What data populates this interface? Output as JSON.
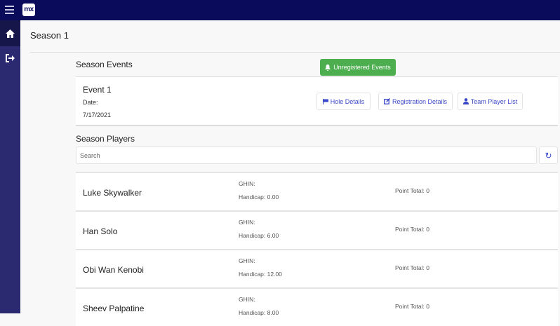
{
  "app": {
    "logo_text": "mx",
    "accent": "#0b0b5c",
    "sidebar_color": "#2b2a70"
  },
  "sidebar": {
    "items": [
      {
        "icon": "home-icon"
      },
      {
        "icon": "sign-out-icon"
      }
    ]
  },
  "page": {
    "title": "Season 1"
  },
  "events": {
    "heading": "Season Events",
    "unregistered_label": "Unregistered Events",
    "unregistered_color": "#4cae4f",
    "event": {
      "name": "Event 1",
      "date_label": "Date:",
      "date": "7/17/2021"
    },
    "buttons": {
      "hole": "Hole Details",
      "registration": "Registration Details",
      "team": "Team Player List"
    }
  },
  "players": {
    "heading": "Season Players",
    "search_placeholder": "Search",
    "list": [
      {
        "name": "Luke Skywalker",
        "ghin": "GHIN:",
        "handicap": "Handicap: 0.00",
        "points": "Point Total: 0"
      },
      {
        "name": "Han Solo",
        "ghin": "GHIN:",
        "handicap": "Handicap: 6.00",
        "points": "Point Total: 0"
      },
      {
        "name": "Obi Wan Kenobi",
        "ghin": "GHIN:",
        "handicap": "Handicap: 12.00",
        "points": "Point Total: 0"
      },
      {
        "name": "Sheev Palpatine",
        "ghin": "GHIN:",
        "handicap": "Handicap: 8.00",
        "points": "Point Total: 0"
      }
    ]
  }
}
